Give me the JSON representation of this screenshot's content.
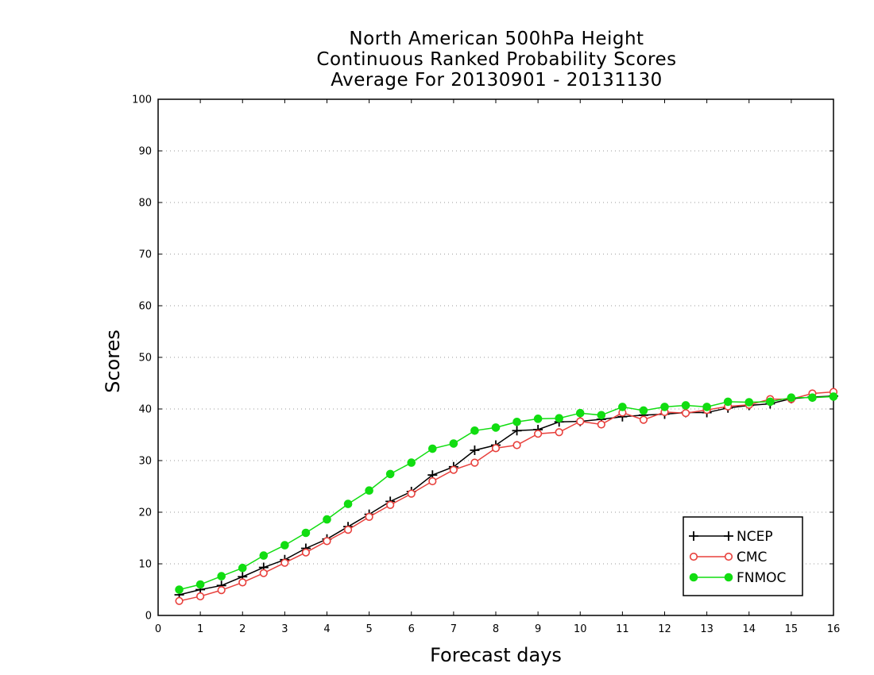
{
  "chart_data": {
    "type": "line",
    "title": [
      "North American 500hPa Height",
      "Continuous Ranked Probability Scores",
      "Average For 20130901 - 20131130"
    ],
    "xlabel": "Forecast days",
    "ylabel": "Scores",
    "xlim": [
      0,
      16
    ],
    "ylim": [
      0,
      100
    ],
    "x_ticks": [
      0,
      1,
      2,
      3,
      4,
      5,
      6,
      7,
      8,
      9,
      10,
      11,
      12,
      13,
      14,
      15,
      16
    ],
    "y_ticks": [
      0,
      10,
      20,
      30,
      40,
      50,
      60,
      70,
      80,
      90,
      100
    ],
    "grid": "horizontal dotted",
    "legend_position": "bottom-right",
    "x": [
      0.5,
      1,
      1.5,
      2,
      2.5,
      3,
      3.5,
      4,
      4.5,
      5,
      5.5,
      6,
      6.5,
      7,
      7.5,
      8,
      8.5,
      9,
      9.5,
      10,
      10.5,
      11,
      11.5,
      12,
      12.5,
      13,
      13.5,
      14,
      14.5,
      15,
      15.5,
      16
    ],
    "series": [
      {
        "name": "NCEP",
        "color": "#000000",
        "marker": "plus",
        "values": [
          4.0,
          5.0,
          5.8,
          7.5,
          9.3,
          10.8,
          13.0,
          14.8,
          17.2,
          19.6,
          22.1,
          24.0,
          27.2,
          28.8,
          32.0,
          33.0,
          35.8,
          36.0,
          37.5,
          37.6,
          38.0,
          38.5,
          38.8,
          39.0,
          39.3,
          39.3,
          40.2,
          40.7,
          41.0,
          42.0,
          42.3,
          42.5
        ]
      },
      {
        "name": "CMC",
        "color": "#e8403c",
        "marker": "open-circle",
        "values": [
          2.8,
          3.7,
          4.9,
          6.4,
          8.2,
          10.2,
          12.2,
          14.4,
          16.6,
          19.1,
          21.4,
          23.6,
          26.0,
          28.2,
          29.6,
          32.4,
          33.0,
          35.2,
          35.5,
          37.6,
          37.0,
          39.3,
          37.9,
          39.4,
          39.2,
          39.8,
          40.5,
          40.8,
          41.9,
          41.9,
          43.0,
          43.3
        ]
      },
      {
        "name": "FNMOC",
        "color": "#11dd11",
        "marker": "filled-circle",
        "values": [
          5.0,
          6.0,
          7.6,
          9.2,
          11.6,
          13.6,
          16.0,
          18.6,
          21.6,
          24.2,
          27.4,
          29.6,
          32.3,
          33.3,
          35.8,
          36.4,
          37.5,
          38.1,
          38.2,
          39.2,
          38.8,
          40.4,
          39.7,
          40.4,
          40.7,
          40.4,
          41.4,
          41.3,
          41.4,
          42.2,
          42.2,
          42.4
        ]
      }
    ]
  }
}
